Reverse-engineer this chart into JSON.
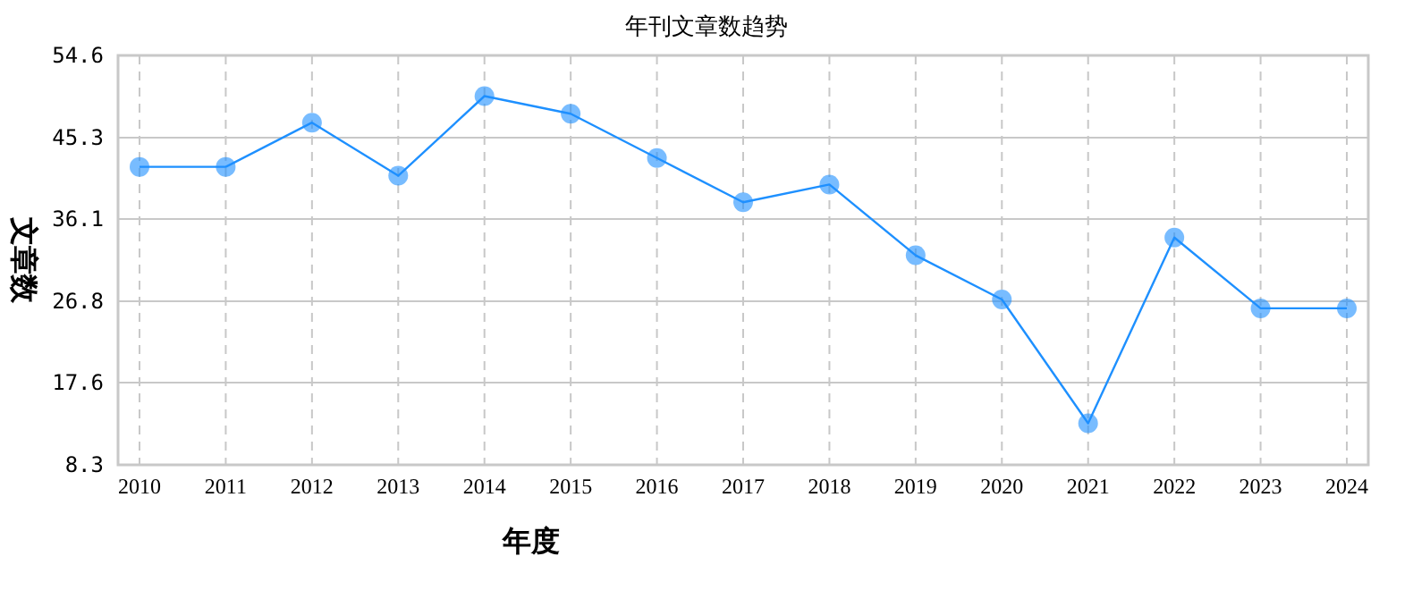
{
  "chart_data": {
    "type": "line",
    "title": "年刊文章数趋势",
    "xlabel": "年度",
    "ylabel": "文章数",
    "categories": [
      "2010",
      "2011",
      "2012",
      "2013",
      "2014",
      "2015",
      "2016",
      "2017",
      "2018",
      "2019",
      "2020",
      "2021",
      "2022",
      "2023",
      "2024"
    ],
    "series": [
      {
        "color": "#1e90ff",
        "values": [
          42,
          42,
          47,
          41,
          50,
          48,
          43,
          38,
          40,
          32,
          27,
          13,
          34,
          26,
          26
        ]
      }
    ],
    "ylim": [
      8.3,
      54.6
    ],
    "yticks": [
      8.3,
      17.6,
      26.8,
      36.1,
      45.3,
      54.6
    ],
    "grid": true,
    "marker": "circle",
    "line_style": "solid"
  }
}
